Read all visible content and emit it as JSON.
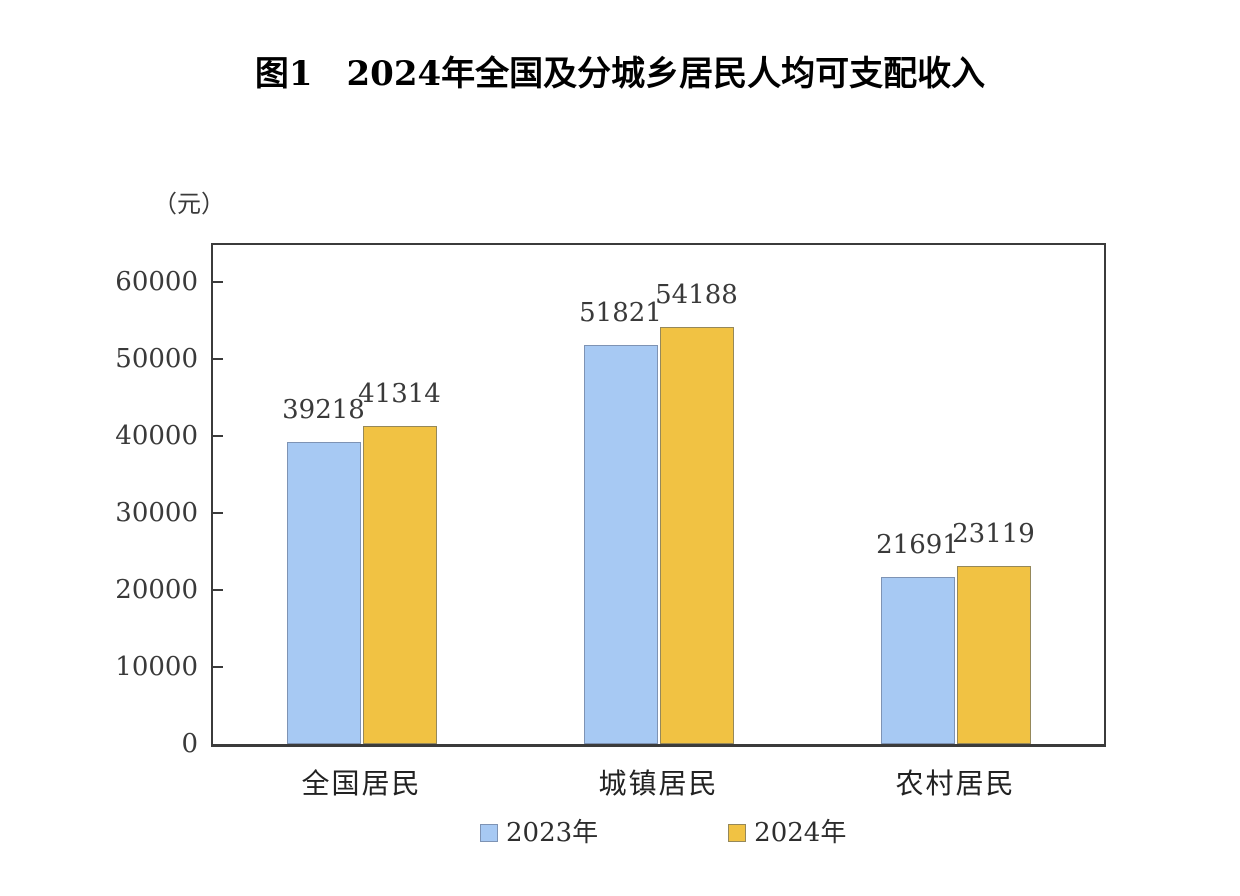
{
  "title": "图1　2024年全国及分城乡居民人均可支配收入",
  "chart_data": {
    "type": "bar",
    "title": "图1　2024年全国及分城乡居民人均可支配收入",
    "categories": [
      "全国居民",
      "城镇居民",
      "农村居民"
    ],
    "series": [
      {
        "name": "2023年",
        "color": "#A7C9F3",
        "border_color": "#7E93B4",
        "values": [
          39218,
          51821,
          21691
        ]
      },
      {
        "name": "2024年",
        "color": "#F1C243",
        "border_color": "#95885A",
        "values": [
          41314,
          54188,
          23119
        ]
      }
    ],
    "ylabel": "（元）",
    "xlabel": "",
    "ylim": [
      0,
      65000
    ],
    "yticks": [
      0,
      10000,
      20000,
      30000,
      40000,
      50000,
      60000
    ],
    "grid": false,
    "legend_position": "bottom",
    "value_labels_shown": true,
    "axis_color": "#3B3B3B",
    "text_color": "#3A3A3A",
    "background_color": "#FFFFFF"
  }
}
